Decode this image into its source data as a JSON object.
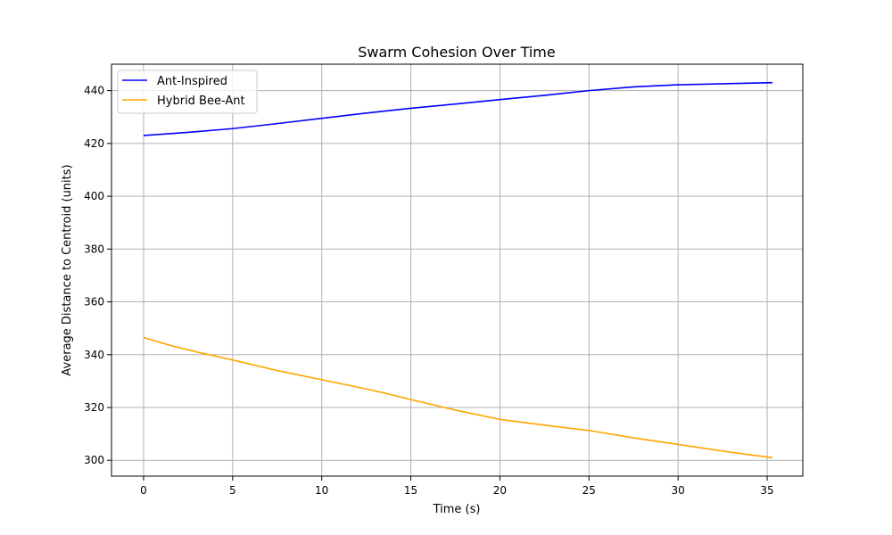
{
  "chart_data": {
    "type": "line",
    "title": "Swarm Cohesion Over Time",
    "xlabel": "Time (s)",
    "ylabel": "Average Distance to Centroid (units)",
    "xlim": [
      -1.8,
      37.0
    ],
    "ylim": [
      294,
      450
    ],
    "xticks": [
      0,
      5,
      10,
      15,
      20,
      25,
      30,
      35
    ],
    "yticks": [
      300,
      320,
      340,
      360,
      380,
      400,
      420,
      440
    ],
    "grid": true,
    "legend_position": "top-left",
    "series": [
      {
        "name": "Ant-Inspired",
        "color": "#0000ff",
        "x": [
          0,
          2.5,
          5,
          7.5,
          10,
          12.5,
          15,
          17.5,
          20,
          22.5,
          25,
          27.5,
          30,
          32.5,
          35.3
        ],
        "y": [
          423,
          424.2,
          425.6,
          427.5,
          429.5,
          431.5,
          433.3,
          434.9,
          436.6,
          438.2,
          440,
          441.4,
          442.2,
          442.6,
          443
        ]
      },
      {
        "name": "Hybrid Bee-Ant",
        "color": "#ffa500",
        "x": [
          0,
          1.5,
          3,
          5,
          7.5,
          10,
          12.5,
          13.5,
          15,
          17.5,
          20,
          22.5,
          25,
          27.5,
          30,
          33,
          35.3
        ],
        "y": [
          346.5,
          343.5,
          341,
          338,
          334,
          330.5,
          327,
          325.5,
          323,
          319,
          315.5,
          313.3,
          311.3,
          308.5,
          306,
          303,
          301
        ]
      }
    ]
  }
}
